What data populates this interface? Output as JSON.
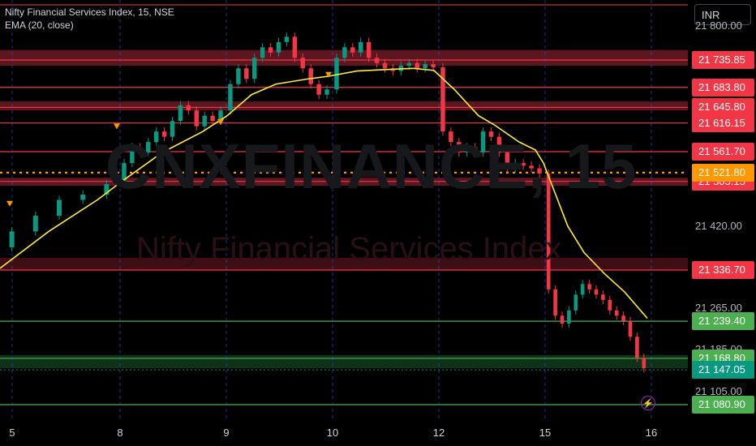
{
  "legend": {
    "symbol_line": "Nifty Financial Services Index, 15, NSE",
    "indicator_line": "EMA (20, close)"
  },
  "watermark": {
    "ticker": "CNXFINANCE, 15",
    "name": "Nifty Financial Services Index"
  },
  "currency": "INR",
  "price_scale": [
    {
      "label": "21 800.00",
      "value": 21800
    },
    {
      "label": "21 420.00",
      "value": 21420
    },
    {
      "label": "21 265.00",
      "value": 21265
    },
    {
      "label": "21 185.00",
      "value": 21185
    },
    {
      "label": "21 105.00",
      "value": 21105
    }
  ],
  "levels": [
    {
      "label": "21 735.85",
      "value": 21735.85,
      "kind": "resistance",
      "color": "#f23645"
    },
    {
      "label": "21 683.80",
      "value": 21683.8,
      "kind": "resistance",
      "color": "#f23645"
    },
    {
      "label": "21 645.80",
      "value": 21645.8,
      "kind": "resistance",
      "color": "#f23645"
    },
    {
      "label": "21 616.15",
      "value": 21616.15,
      "kind": "resistance",
      "color": "#f23645"
    },
    {
      "label": "21 561.70",
      "value": 21561.7,
      "kind": "resistance",
      "color": "#f23645"
    },
    {
      "label": "21 505.15",
      "value": 21505.15,
      "kind": "resistance",
      "color": "#f23645"
    },
    {
      "label": "21 336.70",
      "value": 21336.7,
      "kind": "resistance",
      "color": "#f23645"
    },
    {
      "label": "21 239.40",
      "value": 21239.4,
      "kind": "support",
      "color": "#4caf50"
    },
    {
      "label": "21 168.80",
      "value": 21168.8,
      "kind": "support",
      "color": "#4caf50"
    },
    {
      "label": "21 080.90",
      "value": 21080.9,
      "kind": "support",
      "color": "#4caf50"
    }
  ],
  "dotted_level": {
    "label": "21 521.80",
    "value": 21521.8,
    "color": "#ff9800"
  },
  "last_price": {
    "label": "21 147.05",
    "value": 21147.05,
    "color": "#089981"
  },
  "x_axis": [
    "5",
    "8",
    "9",
    "10",
    "12",
    "15",
    "16"
  ],
  "chart_data": {
    "type": "candlestick",
    "title": "Nifty Financial Services Index, 15, NSE",
    "indicator": "EMA (20, close)",
    "up_color": "#089981",
    "down_color": "#f23645",
    "ema_color": "#ffeb3b",
    "y_range": [
      21060,
      21830
    ],
    "sessions": [
      {
        "day": "5",
        "prices": [
          21380,
          21410,
          21440,
          21470,
          21480,
          21500
        ]
      },
      {
        "day": "8",
        "prices": [
          21500,
          21540,
          21570,
          21560,
          21580,
          21600,
          21590,
          21620,
          21650,
          21640,
          21610,
          21630,
          21620,
          21640
        ]
      },
      {
        "day": "9",
        "prices": [
          21640,
          21690,
          21720,
          21700,
          21740,
          21760,
          21750,
          21770,
          21780,
          21740,
          21720,
          21690,
          21670,
          21680
        ]
      },
      {
        "day": "10",
        "prices": [
          21680,
          21740,
          21760,
          21750,
          21770,
          21740,
          21730,
          21720,
          21715,
          21725,
          21730,
          21720,
          21728,
          21722
        ]
      },
      {
        "day": "12",
        "prices": [
          21722,
          21600,
          21580,
          21560,
          21570,
          21560,
          21600,
          21590,
          21560,
          21530,
          21540,
          21535,
          21530,
          21520
        ]
      },
      {
        "day": "15",
        "prices": [
          21520,
          21300,
          21250,
          21235,
          21260,
          21290,
          21310,
          21300,
          21290,
          21280,
          21260,
          21250,
          21240,
          21210,
          21170,
          21150
        ]
      }
    ],
    "ema_points": [
      [
        0,
        21340
      ],
      [
        60,
        21410
      ],
      [
        120,
        21470
      ],
      [
        150,
        21505
      ],
      [
        200,
        21560
      ],
      [
        250,
        21600
      ],
      [
        280,
        21630
      ],
      [
        310,
        21670
      ],
      [
        340,
        21690
      ],
      [
        380,
        21700
      ],
      [
        405,
        21705
      ],
      [
        440,
        21715
      ],
      [
        480,
        21718
      ],
      [
        510,
        21720
      ],
      [
        535,
        21716
      ],
      [
        560,
        21680
      ],
      [
        590,
        21630
      ],
      [
        610,
        21612
      ],
      [
        640,
        21580
      ],
      [
        660,
        21565
      ],
      [
        670,
        21540
      ],
      [
        685,
        21480
      ],
      [
        700,
        21420
      ],
      [
        720,
        21370
      ],
      [
        745,
        21330
      ],
      [
        770,
        21295
      ],
      [
        798,
        21245
      ]
    ],
    "signal_markers": [
      {
        "x": 12,
        "price": 21462
      },
      {
        "x": 144,
        "price": 21609
      },
      {
        "x": 272,
        "price": 21617
      },
      {
        "x": 405,
        "price": 21707
      }
    ]
  }
}
